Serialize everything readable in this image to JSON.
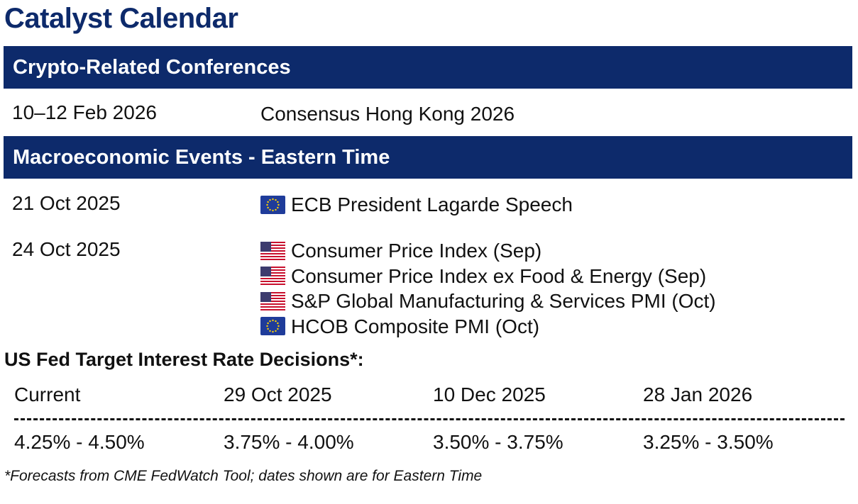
{
  "title": "Catalyst Calendar",
  "sections": {
    "conferences": {
      "heading": "Crypto-Related Conferences",
      "rows": [
        {
          "date": "10–12 Feb 2026",
          "events": [
            {
              "flag": "",
              "text": "Consensus Hong Kong 2026"
            }
          ]
        }
      ]
    },
    "macro": {
      "heading": "Macroeconomic Events - Eastern Time",
      "rows": [
        {
          "date": "21 Oct 2025",
          "events": [
            {
              "flag": "eu-flag-icon",
              "text": "ECB President Lagarde Speech"
            }
          ]
        },
        {
          "date": "24 Oct 2025",
          "events": [
            {
              "flag": "us-flag-icon",
              "text": "Consumer Price Index (Sep)"
            },
            {
              "flag": "us-flag-icon",
              "text": "Consumer Price Index ex Food & Energy (Sep)"
            },
            {
              "flag": "us-flag-icon",
              "text": "S&P Global Manufacturing & Services PMI (Oct)"
            },
            {
              "flag": "eu-flag-icon",
              "text": "HCOB Composite PMI (Oct)"
            }
          ]
        }
      ]
    }
  },
  "fed": {
    "heading": "US Fed Target Interest Rate Decisions*:",
    "columns": [
      {
        "date": "Current",
        "rate": "4.25% - 4.50%"
      },
      {
        "date": "29 Oct 2025",
        "rate": "3.75% - 4.00%"
      },
      {
        "date": "10 Dec 2025",
        "rate": "3.50% - 3.75%"
      },
      {
        "date": "28 Jan 2026",
        "rate": "3.25% - 3.50%"
      }
    ]
  },
  "footnote": "*Forecasts from CME FedWatch Tool; dates shown are for Eastern Time",
  "colors": {
    "brand_navy": "#0d2a6b",
    "text": "#111111",
    "eu_blue": "#1f3c9a",
    "eu_star": "#ffd200",
    "us_red": "#c8102e",
    "us_blue": "#3c3b6e"
  }
}
